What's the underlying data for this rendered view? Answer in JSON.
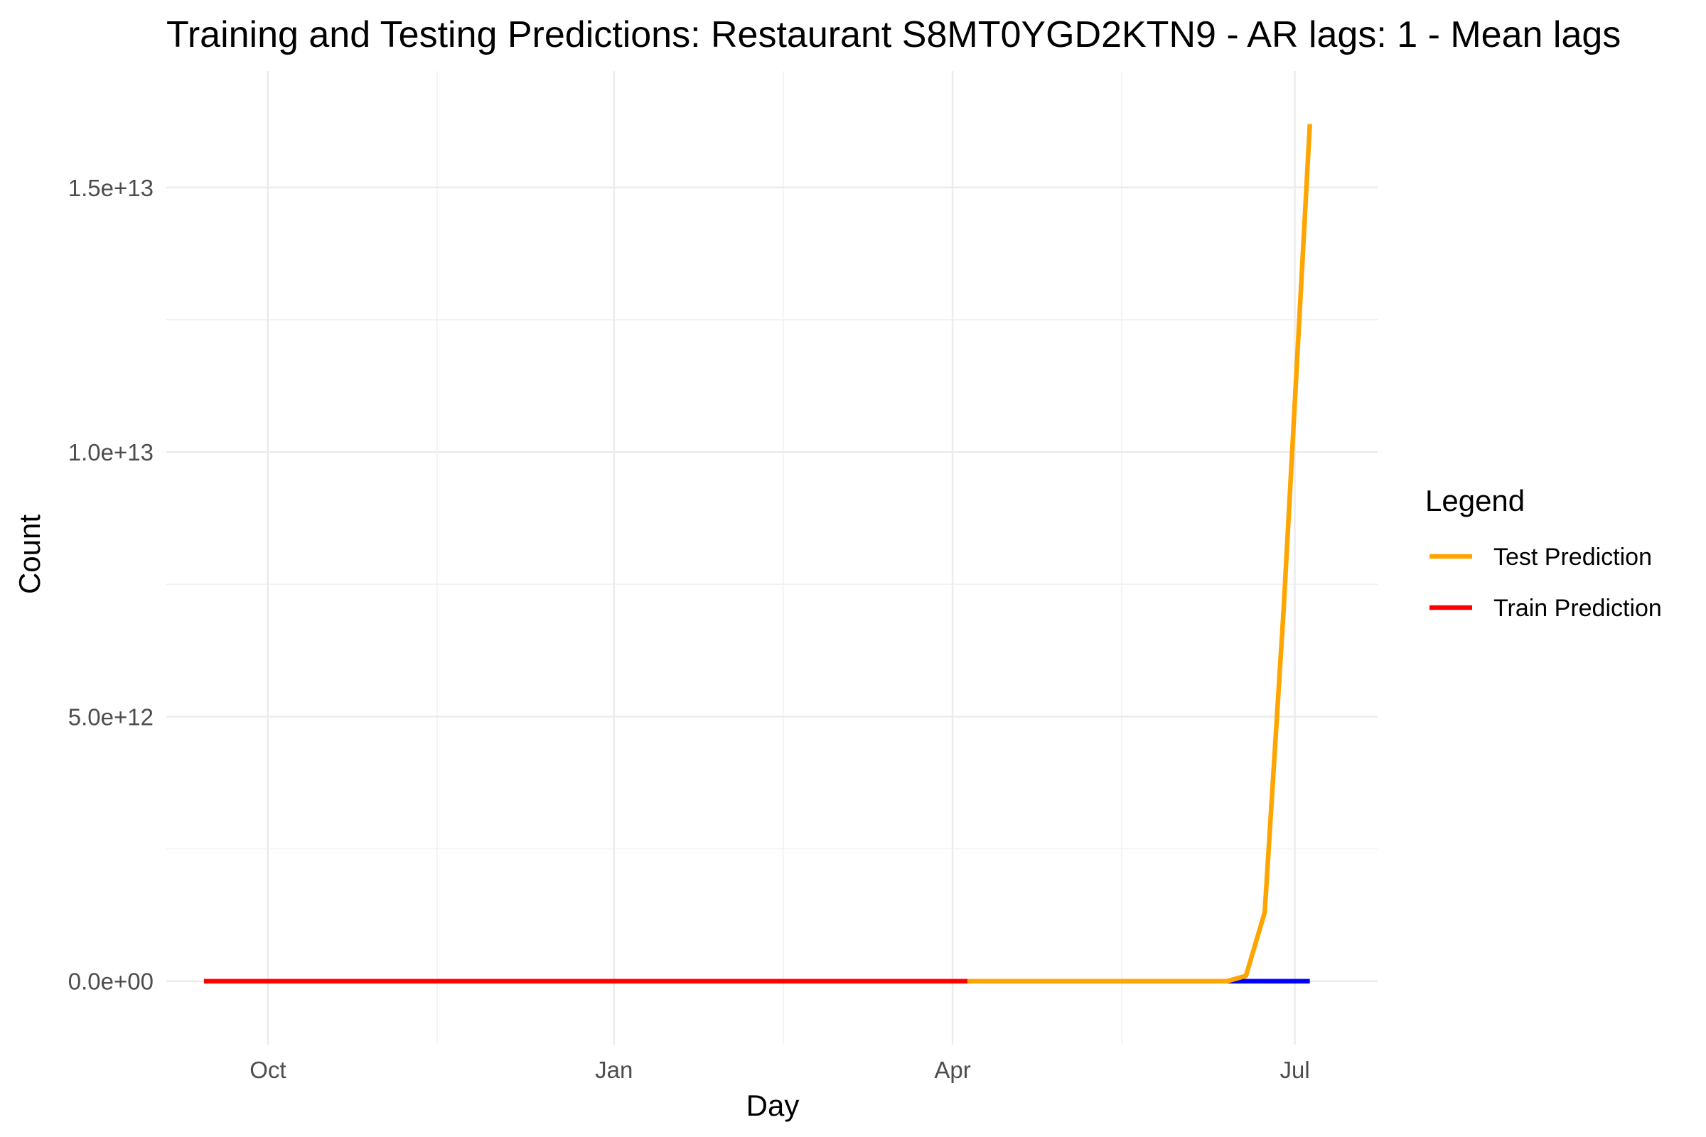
{
  "chart_data": {
    "type": "line",
    "title": "Training and Testing Predictions: Restaurant S8MT0YGD2KTN9 - AR lags: 1 - Mean lags",
    "xlabel": "Day",
    "ylabel": "Count",
    "x_ticks": [
      {
        "date": "2020-10-01",
        "label": "Oct"
      },
      {
        "date": "2021-01-01",
        "label": "Jan"
      },
      {
        "date": "2021-04-01",
        "label": "Apr"
      },
      {
        "date": "2021-07-01",
        "label": "Jul"
      }
    ],
    "x_minor_ticks": [
      "2020-11-15",
      "2021-02-15",
      "2021-05-16"
    ],
    "y_ticks": [
      {
        "value": 0,
        "label": "0.0e+00"
      },
      {
        "value": 5000000000000,
        "label": "5.0e+12"
      },
      {
        "value": 10000000000000,
        "label": "1.0e+13"
      },
      {
        "value": 15000000000000,
        "label": "1.5e+13"
      }
    ],
    "y_minor_ticks": [
      2500000000000,
      7500000000000,
      12500000000000
    ],
    "xlim": [
      "2020-09-04",
      "2021-07-23"
    ],
    "ylim": [
      -1200000000000,
      17200000000000
    ],
    "grid": true,
    "legend": {
      "title": "Legend",
      "position": "right",
      "entries": [
        {
          "label": "Test Prediction",
          "color": "#FFA500"
        },
        {
          "label": "Train Prediction",
          "color": "#FF0000"
        }
      ]
    },
    "series": [
      {
        "label": "Train Prediction",
        "color": "#FF0000",
        "points": [
          {
            "x": "2020-09-14",
            "y": 0
          },
          {
            "x": "2021-04-05",
            "y": 0
          }
        ]
      },
      {
        "color": "#0000FF",
        "points": [
          {
            "x": "2021-06-09",
            "y": 0
          },
          {
            "x": "2021-07-05",
            "y": 0
          }
        ]
      },
      {
        "label": "Test Prediction",
        "color": "#FFA500",
        "points": [
          {
            "x": "2021-04-05",
            "y": 0
          },
          {
            "x": "2021-06-09",
            "y": 0
          },
          {
            "x": "2021-06-13",
            "y": 0
          },
          {
            "x": "2021-06-18",
            "y": 100000000000
          },
          {
            "x": "2021-06-23",
            "y": 1300000000000
          },
          {
            "x": "2021-06-28",
            "y": 7000000000000
          },
          {
            "x": "2021-07-05",
            "y": 16200000000000
          }
        ]
      }
    ]
  }
}
